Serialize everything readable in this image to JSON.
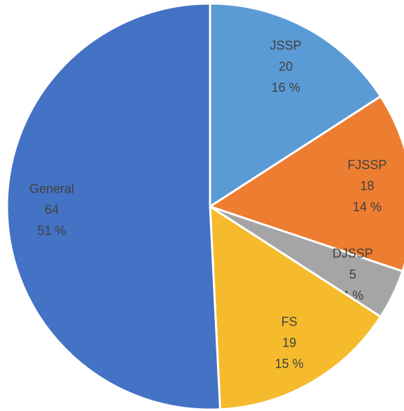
{
  "chart_data": {
    "type": "pie",
    "categories": [
      "JSSP",
      "FJSSP",
      "DJSSP",
      "FS",
      "General"
    ],
    "values": [
      20,
      18,
      5,
      19,
      64
    ],
    "percent_labels": [
      "16 %",
      "14 %",
      "4 %",
      "15 %",
      "51 %"
    ],
    "colors": [
      "#5b9bd5",
      "#ed7d31",
      "#a5a5a5",
      "#f5bb2c",
      "#4472c4"
    ]
  }
}
